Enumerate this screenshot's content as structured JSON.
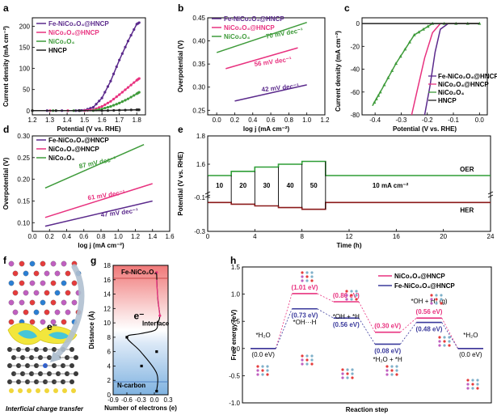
{
  "colors": {
    "fe": "#5b2a8c",
    "nico": "#e8327f",
    "nico4": "#3e9b3a",
    "hncp": "#222222",
    "oer_line": "#2e9e36",
    "her_line": "#8b1a1a",
    "red_band": "#f4a4a4",
    "blue_band": "#9cc2e5"
  },
  "panels": {
    "a": {
      "label": "a",
      "xlabel": "Potential (V vs. RHE)",
      "ylabel": "Current density (mA cm⁻²)",
      "xticks": [
        "1.2",
        "1.3",
        "1.4",
        "1.5",
        "1.6",
        "1.7",
        "1.8"
      ],
      "yticks": [
        "0",
        "50",
        "100",
        "150",
        "200"
      ],
      "legend": [
        "Fe-NiCo₂O₄@HNCP",
        "NiCo₂O₄@HNCP",
        "NiCo₂O₄",
        "HNCP"
      ]
    },
    "b": {
      "label": "b",
      "xlabel": "log j (mA cm⁻²)",
      "ylabel": "Overpotential (V)",
      "xticks": [
        "0.0",
        "0.2",
        "0.4",
        "0.6",
        "0.8",
        "1.0",
        "1.2"
      ],
      "yticks": [
        "0.25",
        "0.30",
        "0.35",
        "0.40",
        "0.45"
      ],
      "legend": [
        "Fe-NiCo₂O₄@HNCP",
        "NiCo₂O₄@HNCP",
        "NiCo₂O₄"
      ],
      "slopes": [
        "70 mV dec⁻¹",
        "56 mV dec⁻¹",
        "42 mV dec⁻¹"
      ]
    },
    "c": {
      "label": "c",
      "xlabel": "Potential (V vs. RHE)",
      "ylabel": "Current density (mA cm⁻²)",
      "xticks": [
        "-0.4",
        "-0.3",
        "-0.2",
        "-0.1",
        "0.0"
      ],
      "yticks": [
        "-80",
        "-60",
        "-40",
        "-20",
        "0"
      ],
      "legend": [
        "Fe-NiCo₂O₄@HNCP",
        "NiCo₂O₄@HNCP",
        "NiCo₂O₄",
        "HNCP"
      ]
    },
    "d": {
      "label": "d",
      "xlabel": "log j (mA cm⁻²)",
      "ylabel": "Overpotential (V)",
      "xticks": [
        "0.0",
        "0.2",
        "0.4",
        "0.6",
        "0.8",
        "1.0",
        "1.2",
        "1.4",
        "1.6"
      ],
      "yticks": [
        "0.10",
        "0.15",
        "0.20",
        "0.25",
        "0.30"
      ],
      "legend": [
        "Fe-NiCo₂O₄@HNCP",
        "NiCo₂O₄@HNCP",
        "NiCo₂O₄"
      ],
      "slopes": [
        "87 mV dec⁻¹",
        "61 mV dec⁻¹",
        "47 mV dec⁻¹"
      ]
    },
    "e": {
      "label": "e",
      "xlabel": "Time (h)",
      "ylabel": "Potential (V vs. RHE)",
      "xticks": [
        "0",
        "4",
        "8",
        "12",
        "16",
        "20",
        "24"
      ],
      "yticks": [
        "-0.3",
        "-0.1",
        "1.6",
        "1.8"
      ],
      "steps": [
        "10",
        "20",
        "30",
        "40",
        "50"
      ],
      "const_label": "10 mA cm⁻²",
      "oer": "OER",
      "her": "HER"
    },
    "f": {
      "label": "f",
      "electron": "e⁻",
      "caption": "Interficial charge transfer"
    },
    "g": {
      "label": "g",
      "ylabel": "Distance (Å)",
      "xlabel": "Number of electrons (e)",
      "xticks": [
        "-0.9",
        "-0.6",
        "-0.3",
        "0.0",
        "0.3"
      ],
      "yticks": [
        "0",
        "2",
        "4",
        "6",
        "8",
        "10",
        "12",
        "14",
        "16",
        "18"
      ],
      "top_label": "Fe-NiCo₂O₄",
      "mid_label": "Interface",
      "bottom_label": "N-carbon",
      "electron": "e⁻"
    },
    "h": {
      "label": "h",
      "ylabel": "Free energy (eV)",
      "xlabel": "Reaction step",
      "yticks": [
        "-1.0",
        "-0.5",
        "0.0",
        "0.5",
        "1.0",
        "1.5"
      ],
      "legend": [
        "NiCo₂O₄@HNCP",
        "Fe-NiCo₂O₄@HNCP"
      ],
      "states": [
        "*H₂O",
        "*OH···H",
        "*OH + *H",
        "*H₂O + *H",
        "*OH + H₂ (g)",
        "*H₂O"
      ],
      "state_values": [
        "(0.0 eV)",
        "(0.0 eV)"
      ],
      "energies_pink": [
        "(1.01 eV)",
        "(0.86 eV)",
        "(0.30 eV)",
        "(0.56 eV)"
      ],
      "energies_blue": [
        "(0.73 eV)",
        "(0.56 eV)",
        "(0.08 eV)",
        "(0.48 eV)"
      ]
    }
  },
  "chart_data": [
    {
      "type": "line",
      "panel": "a",
      "title": "",
      "xlabel": "Potential (V vs. RHE)",
      "ylabel": "Current density (mA cm⁻²)",
      "xlim": [
        1.2,
        1.85
      ],
      "ylim": [
        -10,
        220
      ],
      "series": [
        {
          "name": "Fe-NiCo₂O₄@HNCP",
          "x": [
            1.2,
            1.45,
            1.5,
            1.55,
            1.6,
            1.65,
            1.7,
            1.75,
            1.8,
            1.82
          ],
          "values": [
            0,
            0,
            1,
            8,
            30,
            70,
            120,
            165,
            205,
            210
          ]
        },
        {
          "name": "NiCo₂O₄@HNCP",
          "x": [
            1.2,
            1.5,
            1.55,
            1.6,
            1.65,
            1.7,
            1.75,
            1.8,
            1.82
          ],
          "values": [
            0,
            0,
            2,
            10,
            22,
            38,
            55,
            72,
            78
          ]
        },
        {
          "name": "NiCo₂O₄",
          "x": [
            1.2,
            1.55,
            1.6,
            1.65,
            1.7,
            1.75,
            1.8,
            1.82
          ],
          "values": [
            0,
            0,
            4,
            10,
            18,
            28,
            40,
            45
          ]
        },
        {
          "name": "HNCP",
          "x": [
            1.2,
            1.6,
            1.7,
            1.8,
            1.82
          ],
          "values": [
            0,
            0,
            1,
            2,
            2
          ]
        }
      ]
    },
    {
      "type": "line",
      "panel": "b",
      "xlabel": "log j (mA cm⁻²)",
      "ylabel": "Overpotential (V)",
      "xlim": [
        -0.1,
        1.2
      ],
      "ylim": [
        0.24,
        0.45
      ],
      "series": [
        {
          "name": "Fe-NiCo₂O₄@HNCP",
          "x": [
            0.2,
            1.0
          ],
          "values": [
            0.27,
            0.305
          ]
        },
        {
          "name": "NiCo₂O₄@HNCP",
          "x": [
            0.1,
            0.9
          ],
          "values": [
            0.34,
            0.385
          ]
        },
        {
          "name": "NiCo₂O₄",
          "x": [
            0.0,
            1.0
          ],
          "values": [
            0.375,
            0.44
          ]
        }
      ]
    },
    {
      "type": "line",
      "panel": "c",
      "xlabel": "Potential (V vs. RHE)",
      "ylabel": "Current density (mA cm⁻²)",
      "xlim": [
        -0.45,
        0.03
      ],
      "ylim": [
        -80,
        5
      ],
      "series": [
        {
          "name": "Fe-NiCo₂O₄@HNCP",
          "x": [
            0.0,
            -0.12,
            -0.15,
            -0.17,
            -0.19,
            -0.21
          ],
          "values": [
            0,
            0,
            -5,
            -25,
            -55,
            -80
          ]
        },
        {
          "name": "NiCo₂O₄@HNCP",
          "x": [
            0.0,
            -0.15,
            -0.18,
            -0.21,
            -0.24,
            -0.26
          ],
          "values": [
            0,
            0,
            -8,
            -30,
            -60,
            -80
          ]
        },
        {
          "name": "NiCo₂O₄",
          "x": [
            0.0,
            -0.18,
            -0.25,
            -0.32,
            -0.38,
            -0.41
          ],
          "values": [
            0,
            0,
            -10,
            -35,
            -60,
            -72
          ]
        },
        {
          "name": "HNCP",
          "x": [
            0.0,
            -0.45
          ],
          "values": [
            0,
            0
          ]
        }
      ]
    },
    {
      "type": "line",
      "panel": "d",
      "xlabel": "log j (mA cm⁻²)",
      "ylabel": "Overpotential (V)",
      "xlim": [
        0.0,
        1.6
      ],
      "ylim": [
        0.08,
        0.3
      ],
      "series": [
        {
          "name": "Fe-NiCo₂O₄@HNCP",
          "x": [
            0.15,
            1.4
          ],
          "values": [
            0.092,
            0.15
          ]
        },
        {
          "name": "NiCo₂O₄@HNCP",
          "x": [
            0.15,
            1.4
          ],
          "values": [
            0.112,
            0.19
          ]
        },
        {
          "name": "NiCo₂O₄",
          "x": [
            0.15,
            1.3
          ],
          "values": [
            0.18,
            0.28
          ]
        }
      ]
    },
    {
      "type": "line",
      "panel": "e",
      "xlabel": "Time (h)",
      "ylabel": "Potential (V vs. RHE)",
      "xlim": [
        0,
        24
      ],
      "series": [
        {
          "name": "OER",
          "x": [
            0,
            2,
            2,
            4,
            4,
            6,
            6,
            8,
            8,
            10,
            10,
            24
          ],
          "values": [
            1.52,
            1.52,
            1.55,
            1.55,
            1.58,
            1.58,
            1.6,
            1.6,
            1.62,
            1.62,
            1.52,
            1.52
          ]
        },
        {
          "name": "HER",
          "x": [
            0,
            2,
            2,
            4,
            4,
            6,
            6,
            8,
            8,
            10,
            10,
            24
          ],
          "values": [
            -0.13,
            -0.13,
            -0.14,
            -0.14,
            -0.15,
            -0.15,
            -0.16,
            -0.16,
            -0.17,
            -0.17,
            -0.13,
            -0.13
          ]
        }
      ]
    },
    {
      "type": "line",
      "panel": "g",
      "xlabel": "Number of electrons (e)",
      "ylabel": "Distance (Å)",
      "xlim": [
        -0.9,
        0.3
      ],
      "ylim": [
        0,
        18
      ],
      "series": [
        {
          "name": "",
          "x": [
            0.05,
            0.06,
            0.08,
            0.12,
            0.08,
            0.02,
            -0.3,
            -0.6,
            -0.3,
            0.05,
            0.05
          ],
          "values": [
            17,
            15,
            13,
            11,
            10,
            9,
            8.5,
            8,
            6,
            3,
            0.5
          ]
        }
      ]
    },
    {
      "type": "line",
      "panel": "h",
      "xlabel": "Reaction step",
      "ylabel": "Free energy (eV)",
      "ylim": [
        -1.0,
        1.5
      ],
      "categories": [
        "*H₂O",
        "*OH···H",
        "*OH + *H",
        "*H₂O + *H",
        "*OH + H₂ (g)",
        "*H₂O"
      ],
      "series": [
        {
          "name": "NiCo₂O₄@HNCP",
          "values": [
            0.0,
            1.01,
            0.86,
            0.3,
            0.56,
            0.0
          ]
        },
        {
          "name": "Fe-NiCo₂O₄@HNCP",
          "values": [
            0.0,
            0.73,
            0.56,
            0.08,
            0.48,
            0.0
          ]
        }
      ]
    }
  ]
}
